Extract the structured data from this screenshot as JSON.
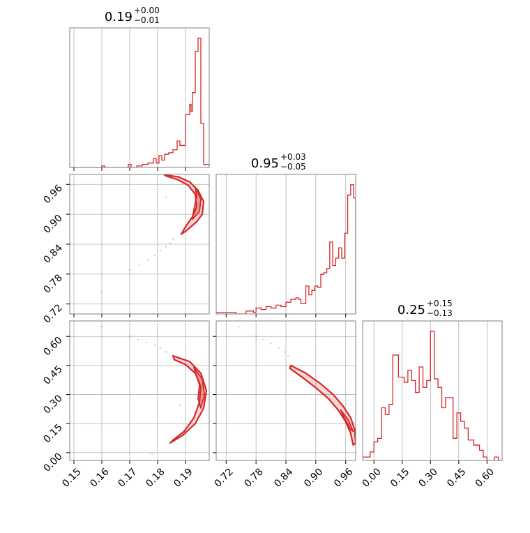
{
  "chart_data": {
    "type": "corner",
    "color": "#d62728",
    "grid": true,
    "panels": [
      {
        "id": "hist-0",
        "type": "histogram",
        "title": {
          "value": "0.19",
          "upper": "+0.00",
          "lower": "−0.01"
        },
        "xlim": [
          0.1485,
          0.1985
        ],
        "x_ticks": [
          0.15,
          0.16,
          0.17,
          0.18,
          0.19
        ],
        "x_tick_labels": [
          "0.15",
          "0.16",
          "0.17",
          "0.18",
          "0.19"
        ],
        "bins": [
          [
            0.1485,
            0.0
          ],
          [
            0.16,
            0.01
          ],
          [
            0.161,
            0.0
          ],
          [
            0.1695,
            0.02
          ],
          [
            0.1705,
            0.0
          ],
          [
            0.1725,
            0.01
          ],
          [
            0.1745,
            0.02
          ],
          [
            0.1765,
            0.03
          ],
          [
            0.1785,
            0.06
          ],
          [
            0.1795,
            0.03
          ],
          [
            0.1805,
            0.08
          ],
          [
            0.1815,
            0.05
          ],
          [
            0.1825,
            0.09
          ],
          [
            0.184,
            0.1
          ],
          [
            0.1855,
            0.12
          ],
          [
            0.187,
            0.18
          ],
          [
            0.188,
            0.15
          ],
          [
            0.19,
            0.36
          ],
          [
            0.1915,
            0.43
          ],
          [
            0.192,
            0.38
          ],
          [
            0.1925,
            0.51
          ],
          [
            0.1935,
            0.79
          ],
          [
            0.1945,
            0.88
          ],
          [
            0.1955,
            0.3
          ],
          [
            0.1965,
            0.02
          ]
        ],
        "bins_end": 0.1985
      },
      {
        "id": "hist-1",
        "type": "histogram",
        "title": {
          "value": "0.95",
          "upper": "+0.03",
          "lower": "−0.05"
        },
        "xlim": [
          0.7,
          0.98
        ],
        "x_ticks": [
          0.72,
          0.78,
          0.84,
          0.9,
          0.96
        ],
        "x_tick_labels": [
          "0.72",
          "0.78",
          "0.84",
          "0.90",
          "0.96"
        ],
        "bins": [
          [
            0.7,
            0.01
          ],
          [
            0.74,
            0.0
          ],
          [
            0.76,
            0.02
          ],
          [
            0.775,
            0.01
          ],
          [
            0.78,
            0.04
          ],
          [
            0.79,
            0.03
          ],
          [
            0.8,
            0.05
          ],
          [
            0.81,
            0.04
          ],
          [
            0.82,
            0.06
          ],
          [
            0.83,
            0.05
          ],
          [
            0.84,
            0.08
          ],
          [
            0.85,
            0.1
          ],
          [
            0.86,
            0.11
          ],
          [
            0.865,
            0.1
          ],
          [
            0.87,
            0.07
          ],
          [
            0.88,
            0.19
          ],
          [
            0.886,
            0.13
          ],
          [
            0.892,
            0.16
          ],
          [
            0.898,
            0.19
          ],
          [
            0.904,
            0.18
          ],
          [
            0.91,
            0.27
          ],
          [
            0.916,
            0.28
          ],
          [
            0.922,
            0.31
          ],
          [
            0.928,
            0.49
          ],
          [
            0.934,
            0.33
          ],
          [
            0.94,
            0.38
          ],
          [
            0.946,
            0.45
          ],
          [
            0.952,
            0.38
          ],
          [
            0.958,
            0.55
          ],
          [
            0.964,
            0.81
          ],
          [
            0.97,
            0.88
          ],
          [
            0.976,
            0.79
          ]
        ],
        "bins_end": 0.98
      },
      {
        "id": "hist-2",
        "type": "histogram",
        "title": {
          "value": "0.25",
          "upper": "+0.15",
          "lower": "−0.13"
        },
        "xlim": [
          -0.06,
          0.68
        ],
        "x_ticks": [
          0.0,
          0.15,
          0.3,
          0.45,
          0.6
        ],
        "x_tick_labels": [
          "0.00",
          "0.15",
          "0.30",
          "0.45",
          "0.60"
        ],
        "bins": [
          [
            -0.06,
            0.02
          ],
          [
            -0.02,
            0.05
          ],
          [
            0.0,
            0.11
          ],
          [
            0.02,
            0.13
          ],
          [
            0.04,
            0.31
          ],
          [
            0.06,
            0.27
          ],
          [
            0.08,
            0.33
          ],
          [
            0.1,
            0.62
          ],
          [
            0.13,
            0.49
          ],
          [
            0.16,
            0.46
          ],
          [
            0.18,
            0.53
          ],
          [
            0.2,
            0.47
          ],
          [
            0.22,
            0.4
          ],
          [
            0.24,
            0.55
          ],
          [
            0.26,
            0.43
          ],
          [
            0.28,
            0.47
          ],
          [
            0.3,
            0.76
          ],
          [
            0.32,
            0.48
          ],
          [
            0.34,
            0.43
          ],
          [
            0.36,
            0.31
          ],
          [
            0.38,
            0.37
          ],
          [
            0.42,
            0.13
          ],
          [
            0.44,
            0.28
          ],
          [
            0.46,
            0.23
          ],
          [
            0.48,
            0.19
          ],
          [
            0.5,
            0.12
          ],
          [
            0.53,
            0.09
          ],
          [
            0.56,
            0.06
          ],
          [
            0.58,
            0.02
          ],
          [
            0.6,
            0.0
          ],
          [
            0.64,
            0.02
          ],
          [
            0.66,
            0.0
          ]
        ],
        "bins_end": 0.68
      },
      {
        "id": "contour-1-0",
        "type": "contour",
        "xlim": [
          0.1485,
          0.1985
        ],
        "ylim": [
          0.7,
          0.98
        ],
        "x_ticks": [
          0.15,
          0.16,
          0.17,
          0.18,
          0.19
        ],
        "y_ticks": [
          0.72,
          0.78,
          0.84,
          0.9,
          0.96
        ],
        "y_tick_labels": [
          "0.72",
          "0.78",
          "0.84",
          "0.90",
          "0.96"
        ],
        "outer_contour": [
          [
            0.1825,
            0.979
          ],
          [
            0.1875,
            0.975
          ],
          [
            0.1915,
            0.965
          ],
          [
            0.1945,
            0.948
          ],
          [
            0.1965,
            0.925
          ],
          [
            0.196,
            0.9
          ],
          [
            0.194,
            0.885
          ],
          [
            0.1905,
            0.868
          ],
          [
            0.1885,
            0.86
          ],
          [
            0.19,
            0.875
          ],
          [
            0.1925,
            0.895
          ],
          [
            0.194,
            0.915
          ],
          [
            0.1935,
            0.94
          ],
          [
            0.191,
            0.958
          ],
          [
            0.187,
            0.97
          ],
          [
            0.183,
            0.977
          ]
        ],
        "inner_contour": [
          [
            0.1935,
            0.955
          ],
          [
            0.1955,
            0.93
          ],
          [
            0.195,
            0.905
          ],
          [
            0.1925,
            0.89
          ],
          [
            0.193,
            0.91
          ],
          [
            0.194,
            0.935
          ]
        ],
        "scatter": [
          [
            0.1735,
            0.798
          ],
          [
            0.1765,
            0.808
          ],
          [
            0.179,
            0.818
          ],
          [
            0.181,
            0.827
          ],
          [
            0.183,
            0.835
          ],
          [
            0.1845,
            0.842
          ],
          [
            0.1855,
            0.85
          ],
          [
            0.17,
            0.788
          ],
          [
            0.16,
            0.745
          ],
          [
            0.183,
            0.935
          ]
        ]
      },
      {
        "id": "contour-2-0",
        "type": "contour",
        "xlim": [
          0.1485,
          0.1985
        ],
        "ylim": [
          -0.04,
          0.68
        ],
        "x_ticks": [
          0.15,
          0.16,
          0.17,
          0.18,
          0.19
        ],
        "y_ticks": [
          0.0,
          0.15,
          0.3,
          0.45,
          0.6
        ],
        "y_tick_labels": [
          "0.00",
          "0.15",
          "0.30",
          "0.45",
          "0.60"
        ],
        "outer_contour": [
          [
            0.1855,
            0.5
          ],
          [
            0.1915,
            0.47
          ],
          [
            0.1955,
            0.41
          ],
          [
            0.1975,
            0.32
          ],
          [
            0.1965,
            0.23
          ],
          [
            0.1935,
            0.15
          ],
          [
            0.189,
            0.09
          ],
          [
            0.1845,
            0.05
          ],
          [
            0.1855,
            0.065
          ],
          [
            0.1895,
            0.11
          ],
          [
            0.193,
            0.18
          ],
          [
            0.195,
            0.26
          ],
          [
            0.1955,
            0.34
          ],
          [
            0.1935,
            0.41
          ],
          [
            0.19,
            0.455
          ],
          [
            0.186,
            0.48
          ]
        ],
        "inner_contour": [
          [
            0.193,
            0.44
          ],
          [
            0.196,
            0.38
          ],
          [
            0.1968,
            0.3
          ],
          [
            0.1955,
            0.23
          ],
          [
            0.1945,
            0.28
          ],
          [
            0.195,
            0.35
          ]
        ],
        "scatter": [
          [
            0.17,
            0.6
          ],
          [
            0.173,
            0.585
          ],
          [
            0.176,
            0.57
          ],
          [
            0.179,
            0.555
          ],
          [
            0.181,
            0.54
          ],
          [
            0.183,
            0.52
          ],
          [
            0.178,
            -0.005
          ],
          [
            0.16,
            0.65
          ],
          [
            0.188,
            0.245
          ]
        ]
      },
      {
        "id": "contour-2-1",
        "type": "contour",
        "xlim": [
          0.7,
          0.98
        ],
        "ylim": [
          -0.04,
          0.68
        ],
        "x_ticks": [
          0.72,
          0.78,
          0.84,
          0.9,
          0.96
        ],
        "x_tick_labels": [
          "0.72",
          "0.78",
          "0.84",
          "0.90",
          "0.96"
        ],
        "y_ticks": [
          0.0,
          0.15,
          0.3,
          0.45,
          0.6
        ],
        "outer_contour": [
          [
            0.85,
            0.45
          ],
          [
            0.88,
            0.41
          ],
          [
            0.91,
            0.355
          ],
          [
            0.935,
            0.3
          ],
          [
            0.955,
            0.24
          ],
          [
            0.97,
            0.18
          ],
          [
            0.978,
            0.12
          ],
          [
            0.98,
            0.05
          ],
          [
            0.975,
            0.04
          ],
          [
            0.97,
            0.1
          ],
          [
            0.96,
            0.16
          ],
          [
            0.945,
            0.22
          ],
          [
            0.925,
            0.28
          ],
          [
            0.9,
            0.335
          ],
          [
            0.875,
            0.385
          ],
          [
            0.848,
            0.435
          ]
        ],
        "inner_contour": [
          [
            0.95,
            0.22
          ],
          [
            0.965,
            0.17
          ],
          [
            0.975,
            0.11
          ],
          [
            0.97,
            0.12
          ],
          [
            0.958,
            0.175
          ]
        ],
        "scatter": [
          [
            0.78,
            0.6
          ],
          [
            0.795,
            0.585
          ],
          [
            0.81,
            0.565
          ],
          [
            0.825,
            0.54
          ],
          [
            0.838,
            0.52
          ],
          [
            0.745,
            0.65
          ],
          [
            0.845,
            0.5
          ]
        ]
      }
    ]
  }
}
